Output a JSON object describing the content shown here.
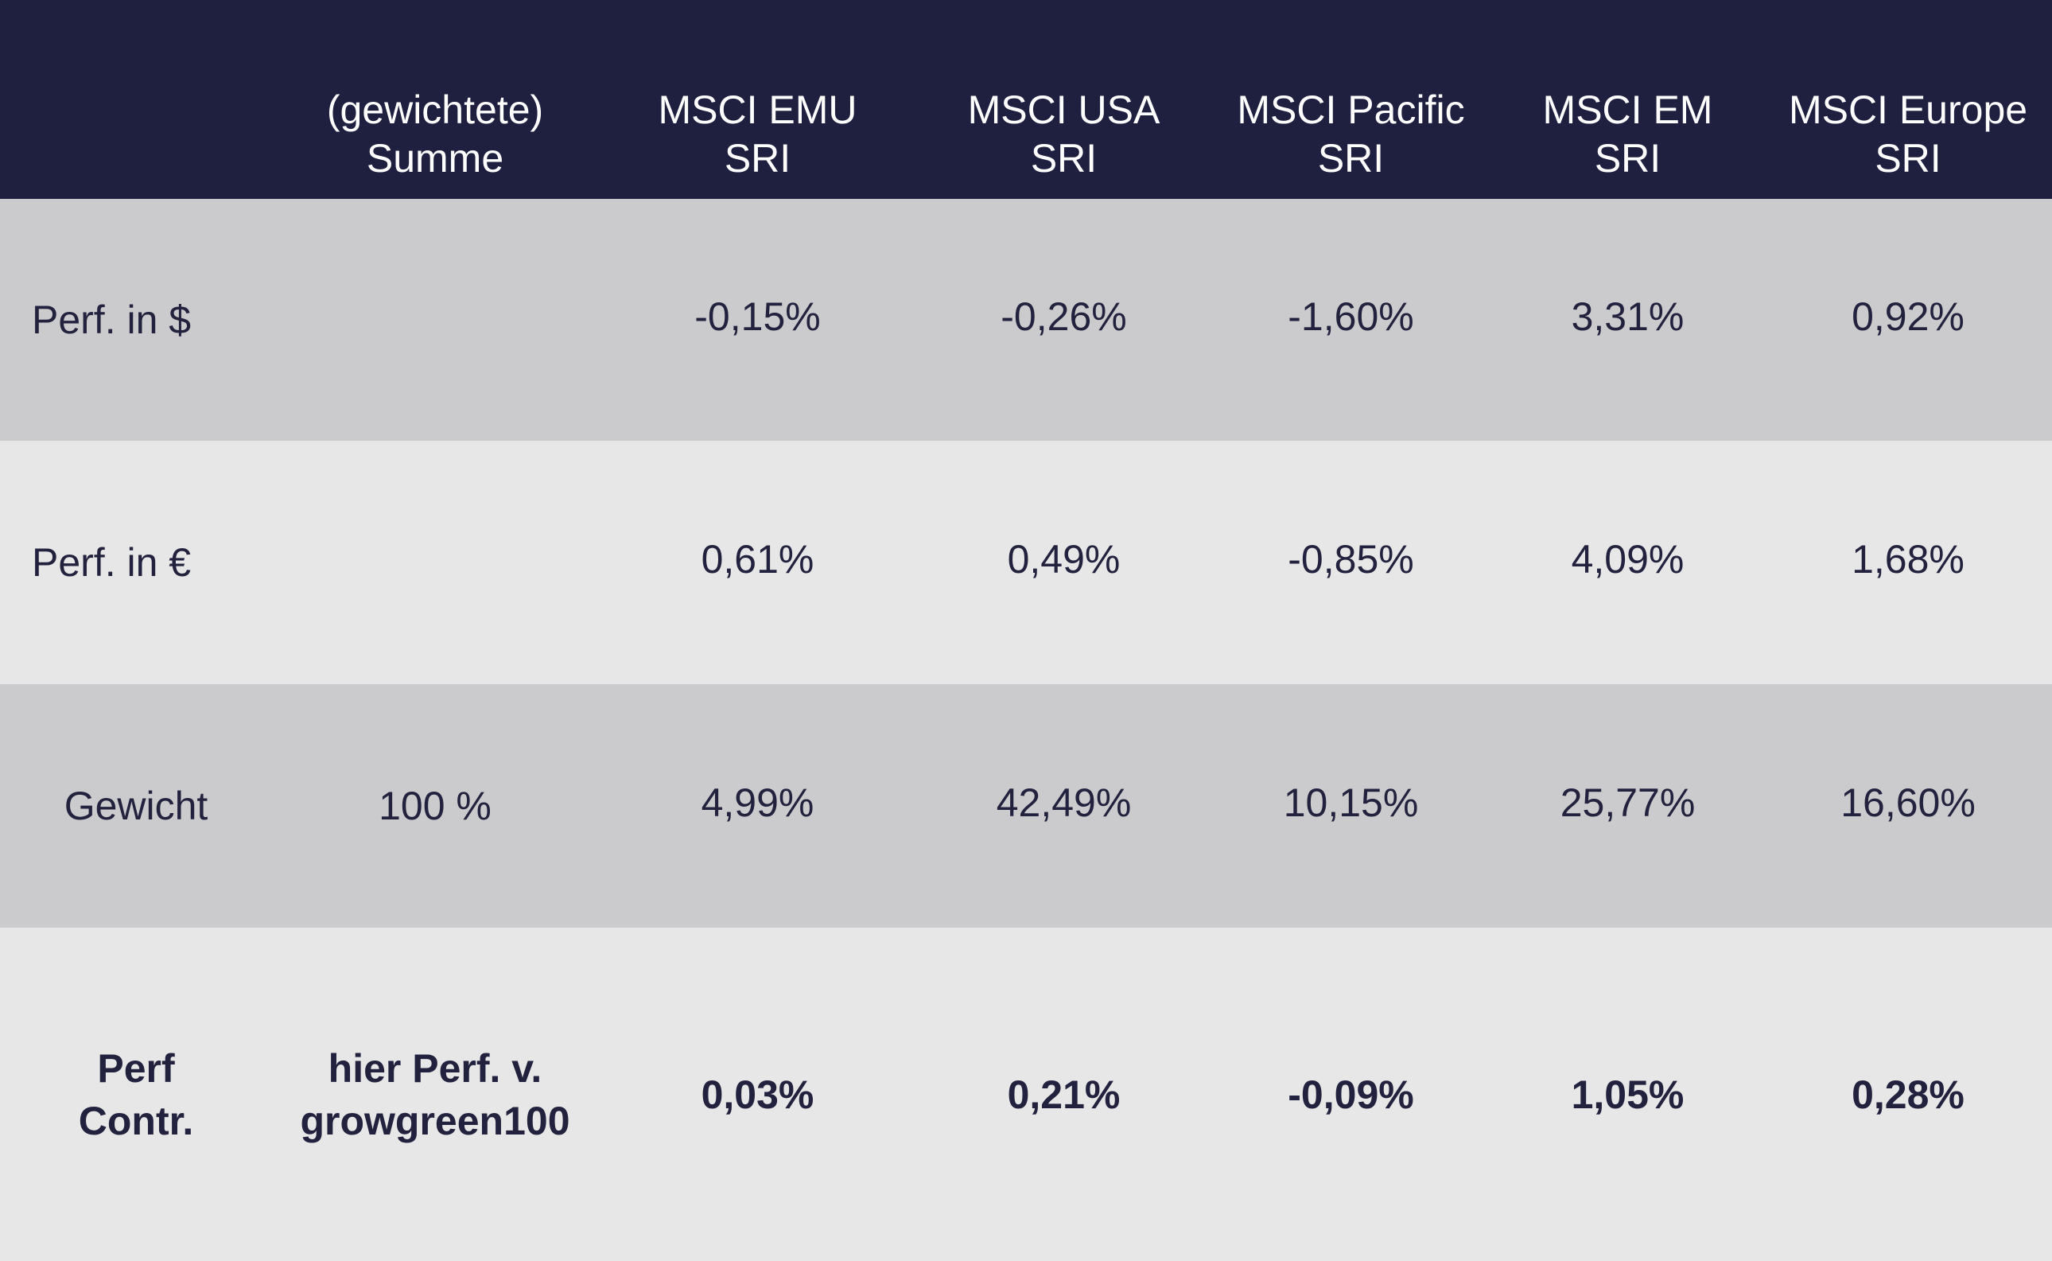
{
  "header": {
    "columns": [
      "",
      "(gewichtete)\nSumme",
      "MSCI EMU\nSRI",
      "MSCI USA\nSRI",
      "MSCI Pacific\nSRI",
      "MSCI EM\nSRI",
      "MSCI Europe\nSRI"
    ]
  },
  "rows": [
    {
      "label": "Perf. in $",
      "sum": "",
      "values": [
        "-0,15%",
        "-0,26%",
        "-1,60%",
        "3,31%",
        "0,92%"
      ]
    },
    {
      "label": "Perf. in €",
      "sum": "",
      "values": [
        "0,61%",
        "0,49%",
        "-0,85%",
        "4,09%",
        "1,68%"
      ]
    },
    {
      "label": "Gewicht",
      "sum": "100 %",
      "values": [
        "4,99%",
        "42,49%",
        "10,15%",
        "25,77%",
        "16,60%"
      ]
    },
    {
      "label": "Perf\nContr.",
      "sum": "hier Perf. v.\ngrowgreen100",
      "values": [
        "0,03%",
        "0,21%",
        "-0,09%",
        "1,05%",
        "0,28%"
      ]
    }
  ],
  "colors": {
    "header_bg": "#1f2040",
    "row_dark": "#cbcbcd",
    "row_light": "#e7e7e7",
    "text": "#22223f"
  }
}
